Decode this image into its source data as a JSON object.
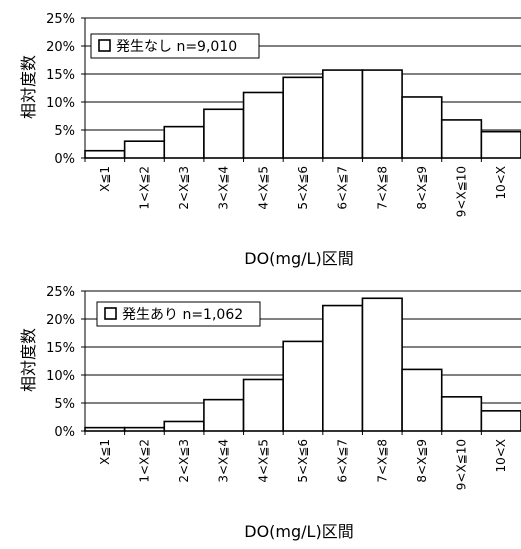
{
  "chart_data": [
    {
      "type": "bar",
      "categories": [
        "X≦1",
        "1<X≦2",
        "2<X≦3",
        "3<X≦4",
        "4<X≦5",
        "5<X≦6",
        "6<X≦7",
        "7<X≦8",
        "8<X≦9",
        "9<X≦10",
        "10<X"
      ],
      "series": [
        {
          "name": "発生なし n=9,010",
          "values": [
            1.3,
            3.0,
            5.6,
            8.7,
            11.7,
            14.4,
            15.7,
            15.7,
            10.9,
            6.8,
            4.7
          ]
        }
      ],
      "ylabel": "相対度数",
      "xlabel": "DO(mg/L)区間",
      "yticks": [
        "0%",
        "5%",
        "10%",
        "15%",
        "20%",
        "25%"
      ],
      "ylim": [
        0,
        25
      ],
      "grid": true,
      "legend": "top-left"
    },
    {
      "type": "bar",
      "categories": [
        "X≦1",
        "1<X≦2",
        "2<X≦3",
        "3<X≦4",
        "4<X≦5",
        "5<X≦6",
        "6<X≦7",
        "7<X≦8",
        "8<X≦9",
        "9<X≦10",
        "10<X"
      ],
      "series": [
        {
          "name": "発生あり n=1,062",
          "values": [
            0.6,
            0.6,
            1.7,
            5.6,
            9.2,
            16.0,
            22.4,
            23.7,
            11.0,
            6.1,
            3.6
          ]
        }
      ],
      "ylabel": "相対度数",
      "xlabel": "DO(mg/L)区間",
      "yticks": [
        "0%",
        "5%",
        "10%",
        "15%",
        "20%",
        "25%"
      ],
      "ylim": [
        0,
        25
      ],
      "grid": true,
      "legend": "top-left"
    }
  ]
}
